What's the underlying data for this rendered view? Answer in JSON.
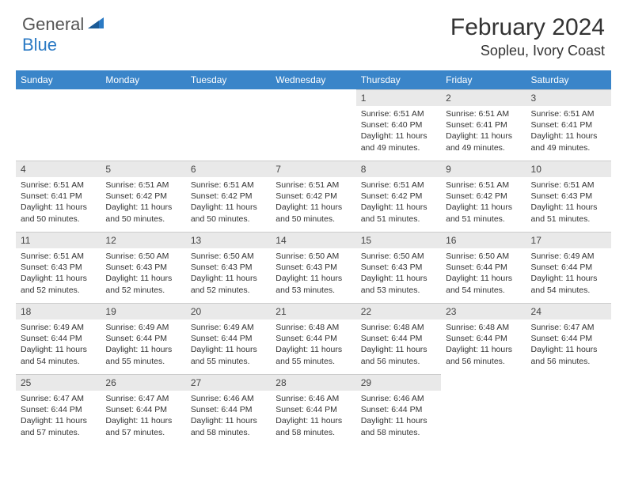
{
  "logo": {
    "general": "General",
    "blue": "Blue"
  },
  "title": "February 2024",
  "location": "Sopleu, Ivory Coast",
  "colors": {
    "header_bg": "#3a85c9",
    "daynum_bg": "#e9e9e9",
    "logo_blue": "#2b7ac4"
  },
  "days_of_week": [
    "Sunday",
    "Monday",
    "Tuesday",
    "Wednesday",
    "Thursday",
    "Friday",
    "Saturday"
  ],
  "calendar": [
    [
      {
        "empty": true
      },
      {
        "empty": true
      },
      {
        "empty": true
      },
      {
        "empty": true
      },
      {
        "n": "1",
        "sr": "Sunrise: 6:51 AM",
        "ss": "Sunset: 6:40 PM",
        "dl": "Daylight: 11 hours and 49 minutes."
      },
      {
        "n": "2",
        "sr": "Sunrise: 6:51 AM",
        "ss": "Sunset: 6:41 PM",
        "dl": "Daylight: 11 hours and 49 minutes."
      },
      {
        "n": "3",
        "sr": "Sunrise: 6:51 AM",
        "ss": "Sunset: 6:41 PM",
        "dl": "Daylight: 11 hours and 49 minutes."
      }
    ],
    [
      {
        "n": "4",
        "sr": "Sunrise: 6:51 AM",
        "ss": "Sunset: 6:41 PM",
        "dl": "Daylight: 11 hours and 50 minutes."
      },
      {
        "n": "5",
        "sr": "Sunrise: 6:51 AM",
        "ss": "Sunset: 6:42 PM",
        "dl": "Daylight: 11 hours and 50 minutes."
      },
      {
        "n": "6",
        "sr": "Sunrise: 6:51 AM",
        "ss": "Sunset: 6:42 PM",
        "dl": "Daylight: 11 hours and 50 minutes."
      },
      {
        "n": "7",
        "sr": "Sunrise: 6:51 AM",
        "ss": "Sunset: 6:42 PM",
        "dl": "Daylight: 11 hours and 50 minutes."
      },
      {
        "n": "8",
        "sr": "Sunrise: 6:51 AM",
        "ss": "Sunset: 6:42 PM",
        "dl": "Daylight: 11 hours and 51 minutes."
      },
      {
        "n": "9",
        "sr": "Sunrise: 6:51 AM",
        "ss": "Sunset: 6:42 PM",
        "dl": "Daylight: 11 hours and 51 minutes."
      },
      {
        "n": "10",
        "sr": "Sunrise: 6:51 AM",
        "ss": "Sunset: 6:43 PM",
        "dl": "Daylight: 11 hours and 51 minutes."
      }
    ],
    [
      {
        "n": "11",
        "sr": "Sunrise: 6:51 AM",
        "ss": "Sunset: 6:43 PM",
        "dl": "Daylight: 11 hours and 52 minutes."
      },
      {
        "n": "12",
        "sr": "Sunrise: 6:50 AM",
        "ss": "Sunset: 6:43 PM",
        "dl": "Daylight: 11 hours and 52 minutes."
      },
      {
        "n": "13",
        "sr": "Sunrise: 6:50 AM",
        "ss": "Sunset: 6:43 PM",
        "dl": "Daylight: 11 hours and 52 minutes."
      },
      {
        "n": "14",
        "sr": "Sunrise: 6:50 AM",
        "ss": "Sunset: 6:43 PM",
        "dl": "Daylight: 11 hours and 53 minutes."
      },
      {
        "n": "15",
        "sr": "Sunrise: 6:50 AM",
        "ss": "Sunset: 6:43 PM",
        "dl": "Daylight: 11 hours and 53 minutes."
      },
      {
        "n": "16",
        "sr": "Sunrise: 6:50 AM",
        "ss": "Sunset: 6:44 PM",
        "dl": "Daylight: 11 hours and 54 minutes."
      },
      {
        "n": "17",
        "sr": "Sunrise: 6:49 AM",
        "ss": "Sunset: 6:44 PM",
        "dl": "Daylight: 11 hours and 54 minutes."
      }
    ],
    [
      {
        "n": "18",
        "sr": "Sunrise: 6:49 AM",
        "ss": "Sunset: 6:44 PM",
        "dl": "Daylight: 11 hours and 54 minutes."
      },
      {
        "n": "19",
        "sr": "Sunrise: 6:49 AM",
        "ss": "Sunset: 6:44 PM",
        "dl": "Daylight: 11 hours and 55 minutes."
      },
      {
        "n": "20",
        "sr": "Sunrise: 6:49 AM",
        "ss": "Sunset: 6:44 PM",
        "dl": "Daylight: 11 hours and 55 minutes."
      },
      {
        "n": "21",
        "sr": "Sunrise: 6:48 AM",
        "ss": "Sunset: 6:44 PM",
        "dl": "Daylight: 11 hours and 55 minutes."
      },
      {
        "n": "22",
        "sr": "Sunrise: 6:48 AM",
        "ss": "Sunset: 6:44 PM",
        "dl": "Daylight: 11 hours and 56 minutes."
      },
      {
        "n": "23",
        "sr": "Sunrise: 6:48 AM",
        "ss": "Sunset: 6:44 PM",
        "dl": "Daylight: 11 hours and 56 minutes."
      },
      {
        "n": "24",
        "sr": "Sunrise: 6:47 AM",
        "ss": "Sunset: 6:44 PM",
        "dl": "Daylight: 11 hours and 56 minutes."
      }
    ],
    [
      {
        "n": "25",
        "sr": "Sunrise: 6:47 AM",
        "ss": "Sunset: 6:44 PM",
        "dl": "Daylight: 11 hours and 57 minutes."
      },
      {
        "n": "26",
        "sr": "Sunrise: 6:47 AM",
        "ss": "Sunset: 6:44 PM",
        "dl": "Daylight: 11 hours and 57 minutes."
      },
      {
        "n": "27",
        "sr": "Sunrise: 6:46 AM",
        "ss": "Sunset: 6:44 PM",
        "dl": "Daylight: 11 hours and 58 minutes."
      },
      {
        "n": "28",
        "sr": "Sunrise: 6:46 AM",
        "ss": "Sunset: 6:44 PM",
        "dl": "Daylight: 11 hours and 58 minutes."
      },
      {
        "n": "29",
        "sr": "Sunrise: 6:46 AM",
        "ss": "Sunset: 6:44 PM",
        "dl": "Daylight: 11 hours and 58 minutes."
      },
      {
        "empty": true
      },
      {
        "empty": true
      }
    ]
  ]
}
